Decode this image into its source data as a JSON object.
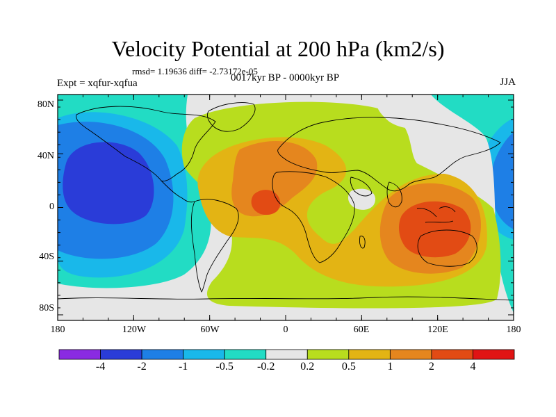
{
  "title": "Velocity Potential at 200 hPa (km2/s)",
  "stats": "rmsd= 1.19636  diff= -2.73172e-05",
  "left_label": "Expt = xqfur-xqfua",
  "center_label": "0017kyr BP - 0000kyr BP",
  "right_label": "JJA",
  "lat_labels": [
    "80N",
    "40N",
    "0",
    "40S",
    "80S"
  ],
  "lon_labels": [
    "180",
    "120W",
    "60W",
    "0",
    "60E",
    "120E",
    "180"
  ],
  "colorbar": {
    "labels": [
      "-4",
      "-2",
      "-1",
      "-0.5",
      "-0.2",
      "0.2",
      "0.5",
      "1",
      "2",
      "4"
    ],
    "colors": [
      "#8a2be2",
      "#2a3cd8",
      "#1e7fe6",
      "#19b8ea",
      "#22dcc4",
      "#e6e6e6",
      "#b8dd1e",
      "#e3b414",
      "#e5861e",
      "#e24b14",
      "#e01414"
    ]
  },
  "legend_colors": {
    "c_m4": "#2a3cd8",
    "c_m2": "#1e7fe6",
    "c_m1": "#19b8ea",
    "c_m05": "#22dcc4",
    "c_0": "#e6e6e6",
    "c_p02": "#b8dd1e",
    "c_p05": "#e3b414",
    "c_p1": "#e5861e",
    "c_p2": "#e24b14",
    "coast": "#000000"
  }
}
